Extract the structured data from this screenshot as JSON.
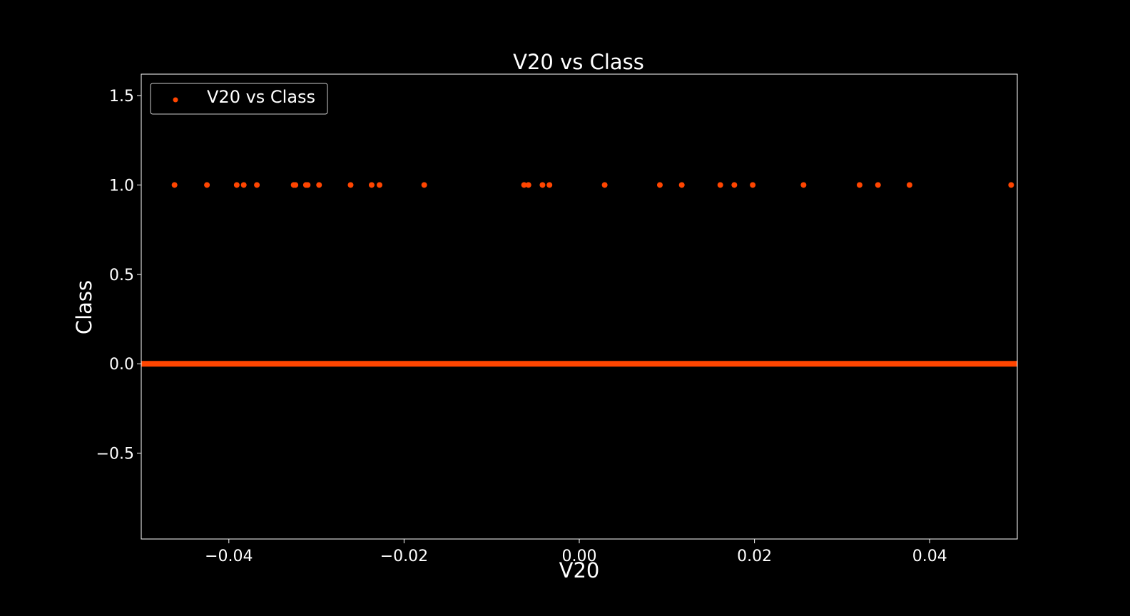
{
  "chart_data": {
    "type": "scatter",
    "title": "V20 vs Class",
    "xlabel": "V20",
    "ylabel": "Class",
    "xlim": [
      -0.05,
      0.05
    ],
    "ylim": [
      -0.98,
      1.62
    ],
    "x_ticks": [
      -0.04,
      -0.02,
      0.0,
      0.02,
      0.04
    ],
    "x_tick_labels": [
      "−0.04",
      "−0.02",
      "0.00",
      "0.02",
      "0.04"
    ],
    "y_ticks": [
      -0.5,
      0.0,
      0.5,
      1.0,
      1.5
    ],
    "y_tick_labels": [
      "−0.5",
      "0.0",
      "0.5",
      "1.0",
      "1.5"
    ],
    "grid": false,
    "legend_position": "upper-left",
    "background_color": "#000000",
    "foreground_color": "#ffffff",
    "series": [
      {
        "name": "V20 vs Class",
        "color": "#ff4500",
        "marker": "circle",
        "class1_x": [
          -0.0462,
          -0.0425,
          -0.0391,
          -0.0383,
          -0.0368,
          -0.0326,
          -0.0324,
          -0.0312,
          -0.031,
          -0.0297,
          -0.0261,
          -0.0237,
          -0.0228,
          -0.0177,
          -0.0063,
          -0.0058,
          -0.0042,
          -0.0034,
          0.0029,
          0.0092,
          0.0117,
          0.0161,
          0.0177,
          0.0198,
          0.0256,
          0.032,
          0.0341,
          0.0377,
          0.0493
        ],
        "class1_y": 1,
        "class0_x_range": [
          -0.05,
          0.05
        ],
        "class0_y": 0,
        "class0_note": "dense band of points covering the full x range"
      }
    ]
  }
}
